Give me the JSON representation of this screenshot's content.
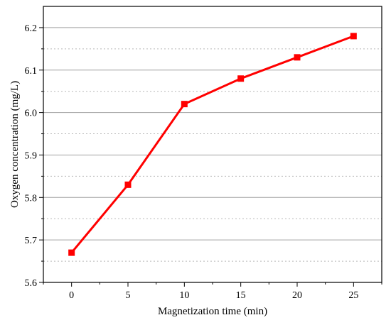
{
  "chart_data": {
    "type": "line",
    "title": "",
    "xlabel": "Magnetization time (min)",
    "ylabel": "Oxygen concentration (mg/L)",
    "x": [
      0,
      5,
      10,
      15,
      20,
      25
    ],
    "series": [
      {
        "values": [
          5.67,
          5.83,
          6.02,
          6.08,
          6.13,
          6.18
        ],
        "color": "#ff0000",
        "marker": "square"
      }
    ],
    "xlim": [
      -2.5,
      27.5
    ],
    "ylim": [
      5.6,
      6.25
    ],
    "xticks": [
      "0",
      "5",
      "10",
      "15",
      "20",
      "25"
    ],
    "yticks": [
      "5.6",
      "5.7",
      "5.8",
      "5.9",
      "6.0",
      "6.1",
      "6.2"
    ],
    "grid": "horizontal major solid, minor dotted",
    "legend": "none"
  }
}
